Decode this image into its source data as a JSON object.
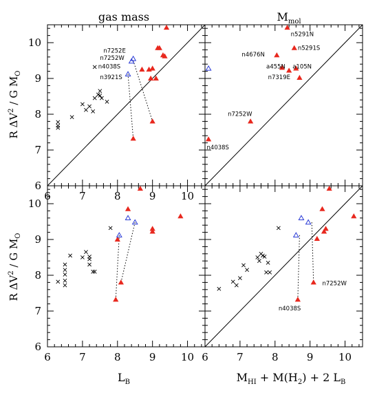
{
  "chart_data": {
    "type": "scatter",
    "panel_titles": {
      "top_left": "gas mass",
      "top_right_main": "M",
      "top_right_sub": "mol"
    },
    "ylabel": {
      "main": "R ΔV",
      "sup": "2",
      "mid": " / G M",
      "sub": "O"
    },
    "xlabel_left": {
      "main": "L",
      "sub": "B"
    },
    "xlabel_right": {
      "part1": "M",
      "sub1": "HI",
      "part2": " + M(H",
      "sub2": "2",
      "part3": ") + 2 L",
      "sub3": "B"
    },
    "xlim": [
      6,
      10.5
    ],
    "ylim": [
      6,
      10.5
    ],
    "xticks": [
      "6",
      "7",
      "8",
      "9",
      "10"
    ],
    "yticks": [
      "6",
      "7",
      "8",
      "9",
      "10"
    ],
    "grid": false,
    "colors": {
      "red": "#e8281e",
      "blue": "#2a3bd6",
      "black": "#000000"
    },
    "panels": [
      {
        "id": "top_left",
        "one_to_one_line": true,
        "cross": [
          [
            6.3,
            7.62
          ],
          [
            6.3,
            7.68
          ],
          [
            6.3,
            7.78
          ],
          [
            6.7,
            7.92
          ],
          [
            7.0,
            8.28
          ],
          [
            7.1,
            8.12
          ],
          [
            7.2,
            8.22
          ],
          [
            7.3,
            8.08
          ],
          [
            7.35,
            8.45
          ],
          [
            7.45,
            8.55
          ],
          [
            7.5,
            8.65
          ],
          [
            7.55,
            8.45
          ],
          [
            7.5,
            8.52
          ],
          [
            7.7,
            8.35
          ],
          [
            7.35,
            9.32
          ]
        ],
        "red": [
          [
            8.45,
            7.32
          ],
          [
            8.7,
            9.25
          ],
          [
            8.9,
            9.25
          ],
          [
            8.95,
            9.0
          ],
          [
            9.0,
            9.28
          ],
          [
            9.0,
            7.8
          ],
          [
            9.1,
            9.0
          ],
          [
            9.15,
            9.85
          ],
          [
            9.2,
            9.85
          ],
          [
            9.3,
            9.65
          ],
          [
            9.35,
            9.62
          ],
          [
            9.4,
            10.42
          ]
        ],
        "blue": [
          [
            8.3,
            9.12
          ],
          [
            8.4,
            9.48
          ],
          [
            8.45,
            9.55
          ]
        ],
        "dotted": [
          [
            [
              8.3,
              9.12
            ],
            [
              8.45,
              7.32
            ]
          ],
          [
            [
              8.45,
              9.5
            ],
            [
              9.0,
              7.8
            ]
          ]
        ],
        "labels": [
          {
            "text": "n7252E",
            "x": 7.6,
            "y": 9.72
          },
          {
            "text": "n7252W",
            "x": 7.5,
            "y": 9.52
          },
          {
            "text": "n4038S",
            "x": 7.45,
            "y": 9.28
          },
          {
            "text": "n3921S",
            "x": 7.5,
            "y": 8.98
          }
        ]
      },
      {
        "id": "top_right",
        "one_to_one_line": true,
        "cross": [],
        "red": [
          [
            6.1,
            7.3
          ],
          [
            7.3,
            7.8
          ],
          [
            8.05,
            9.65
          ],
          [
            8.2,
            9.3
          ],
          [
            8.35,
            10.42
          ],
          [
            8.4,
            9.22
          ],
          [
            8.55,
            9.85
          ],
          [
            8.6,
            9.28
          ],
          [
            8.7,
            9.02
          ]
        ],
        "blue": [
          [
            6.1,
            9.28
          ]
        ],
        "dotted": [],
        "labels": [
          {
            "text": "n5291N",
            "x": 8.45,
            "y": 10.18
          },
          {
            "text": "n5291S",
            "x": 8.65,
            "y": 9.8
          },
          {
            "text": "n4676N",
            "x": 7.05,
            "y": 9.62
          },
          {
            "text": "a455N",
            "x": 7.75,
            "y": 9.28
          },
          {
            "text": "a105N",
            "x": 8.5,
            "y": 9.28
          },
          {
            "text": "n7319E",
            "x": 7.8,
            "y": 8.98
          },
          {
            "text": "n7252W",
            "x": 6.65,
            "y": 7.95
          },
          {
            "text": "n4038S",
            "x": 6.05,
            "y": 7.02
          }
        ]
      },
      {
        "id": "bottom_left",
        "one_to_one_line": false,
        "cross": [
          [
            6.3,
            7.82
          ],
          [
            6.5,
            8.3
          ],
          [
            6.5,
            8.15
          ],
          [
            6.5,
            8.02
          ],
          [
            6.5,
            7.85
          ],
          [
            6.5,
            7.72
          ],
          [
            6.65,
            8.55
          ],
          [
            7.0,
            8.5
          ],
          [
            7.1,
            8.65
          ],
          [
            7.2,
            8.52
          ],
          [
            7.2,
            8.45
          ],
          [
            7.2,
            8.3
          ],
          [
            7.3,
            8.1
          ],
          [
            7.35,
            8.1
          ],
          [
            7.8,
            9.32
          ]
        ],
        "red": [
          [
            7.95,
            7.32
          ],
          [
            8.0,
            9.0
          ],
          [
            8.1,
            7.8
          ],
          [
            8.3,
            9.85
          ],
          [
            8.65,
            10.42
          ],
          [
            9.0,
            9.3
          ],
          [
            9.0,
            9.22
          ],
          [
            9.8,
            9.65
          ]
        ],
        "blue": [
          [
            8.05,
            9.12
          ],
          [
            8.3,
            9.6
          ],
          [
            8.5,
            9.48
          ]
        ],
        "dotted": [
          [
            [
              8.05,
              9.12
            ],
            [
              7.95,
              7.32
            ]
          ],
          [
            [
              8.5,
              9.48
            ],
            [
              8.1,
              7.8
            ]
          ]
        ],
        "labels": []
      },
      {
        "id": "bottom_right",
        "one_to_one_line": true,
        "cross": [
          [
            6.4,
            7.62
          ],
          [
            6.8,
            7.82
          ],
          [
            6.9,
            7.72
          ],
          [
            7.0,
            7.92
          ],
          [
            7.1,
            8.28
          ],
          [
            7.2,
            8.15
          ],
          [
            7.5,
            8.5
          ],
          [
            7.55,
            8.4
          ],
          [
            7.6,
            8.6
          ],
          [
            7.65,
            8.55
          ],
          [
            7.7,
            8.52
          ],
          [
            7.75,
            8.08
          ],
          [
            7.8,
            8.35
          ],
          [
            7.85,
            8.08
          ],
          [
            8.1,
            9.32
          ]
        ],
        "red": [
          [
            8.65,
            7.32
          ],
          [
            9.1,
            7.8
          ],
          [
            9.2,
            9.02
          ],
          [
            9.35,
            9.85
          ],
          [
            9.4,
            9.22
          ],
          [
            9.45,
            9.3
          ],
          [
            9.55,
            10.42
          ],
          [
            10.25,
            9.65
          ]
        ],
        "blue": [
          [
            8.6,
            9.12
          ],
          [
            8.75,
            9.6
          ],
          [
            8.95,
            9.48
          ]
        ],
        "dotted": [
          [
            [
              8.7,
              9.12
            ],
            [
              8.65,
              7.32
            ]
          ],
          [
            [
              9.05,
              9.48
            ],
            [
              9.1,
              7.8
            ]
          ]
        ],
        "labels": [
          {
            "text": "n7252W",
            "x": 9.35,
            "y": 7.72
          },
          {
            "text": "n4038S",
            "x": 8.1,
            "y": 7.02
          }
        ]
      }
    ]
  }
}
